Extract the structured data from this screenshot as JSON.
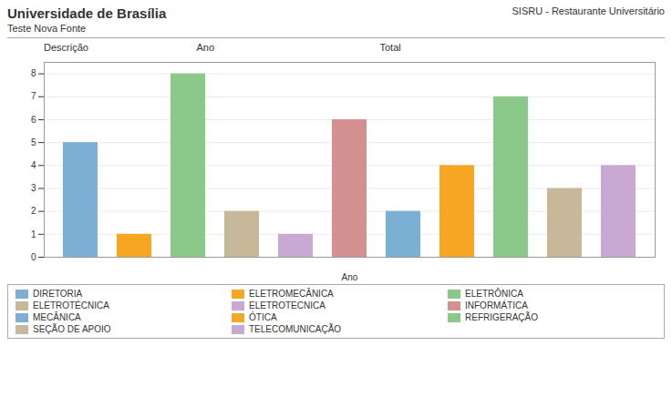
{
  "chart_data": {
    "type": "bar",
    "title": "Universidade de Brasília",
    "subtitle": "Teste Nova Fonte",
    "annotations": [
      "SISRU - Restaurante Universitário",
      "Descrição",
      "Ano",
      "Total"
    ],
    "xlabel": "Ano",
    "categories": [
      "DIRETORIA",
      "ELETROMECÂNICA",
      "ELETRÔNICA",
      "ELETROTÉCNICA",
      "ELETROTECNICA",
      "INFORMÁTICA",
      "MECÂNICA",
      "ÓTICA",
      "REFRIGERAÇÃO",
      "SEÇÃO DE APOIO",
      "TELECOMUNICAÇÃO"
    ],
    "values": [
      5,
      1,
      8,
      2,
      1,
      6,
      2,
      4,
      7,
      3,
      4
    ],
    "colors": [
      "#7bafd4",
      "#f5a623",
      "#8bc98b",
      "#c8b89a",
      "#c9a8d4",
      "#d49090",
      "#7bafd4",
      "#f5a623",
      "#8bc98b",
      "#c8b89a",
      "#c9a8d4"
    ],
    "ylim": [
      0,
      8.5
    ],
    "yticks": [
      0,
      1,
      2,
      3,
      4,
      5,
      6,
      7,
      8
    ],
    "grid": true,
    "legend": "bottom",
    "tick_labels": "y"
  }
}
